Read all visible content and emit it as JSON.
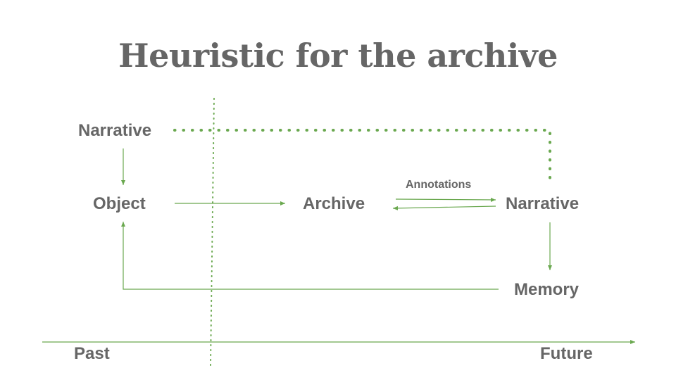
{
  "title": "Heuristic for the archive",
  "nodes": {
    "narrative_top": "Narrative",
    "object": "Object",
    "archive": "Archive",
    "narrative_right": "Narrative",
    "memory": "Memory"
  },
  "edge_labels": {
    "annotations": "Annotations"
  },
  "timeline": {
    "past": "Past",
    "future": "Future"
  },
  "colors": {
    "accent": "#6aa84f",
    "text": "#666666"
  }
}
